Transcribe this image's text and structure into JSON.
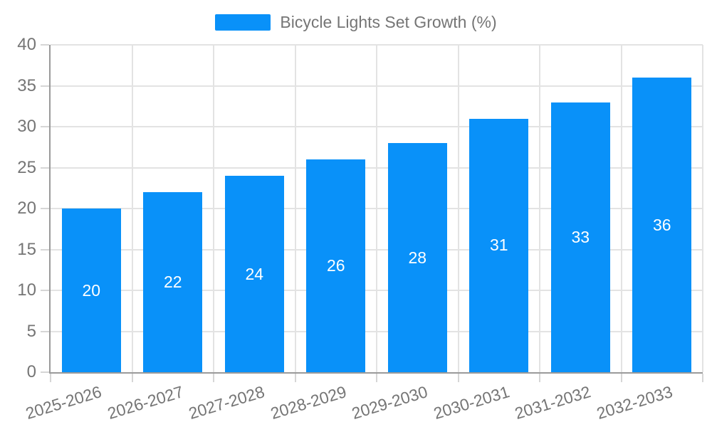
{
  "legend": {
    "label": "Bicycle Lights Set Growth (%)"
  },
  "chart_data": {
    "type": "bar",
    "title": "Bicycle Lights Set Growth (%)",
    "series_name": "Bicycle Lights Set Growth (%)",
    "categories": [
      "2025-2026",
      "2026-2027",
      "2027-2028",
      "2028-2029",
      "2029-2030",
      "2030-2031",
      "2031-2032",
      "2032-2033"
    ],
    "values": [
      20,
      22,
      24,
      26,
      28,
      31,
      33,
      36
    ],
    "xlabel": "",
    "ylabel": "",
    "ylim": [
      0,
      40
    ],
    "ytick_step": 5,
    "grid": true,
    "legend_position": "top-center",
    "value_labels": "inside-center",
    "x_label_rotation_deg": -17,
    "colors": {
      "bar": "#0991f9",
      "value_label": "#ffffff",
      "axis_text": "#757575",
      "grid_line": "#e3e3e3",
      "axis_line": "#9a9a9a",
      "tick": "#d6d6d6"
    }
  }
}
